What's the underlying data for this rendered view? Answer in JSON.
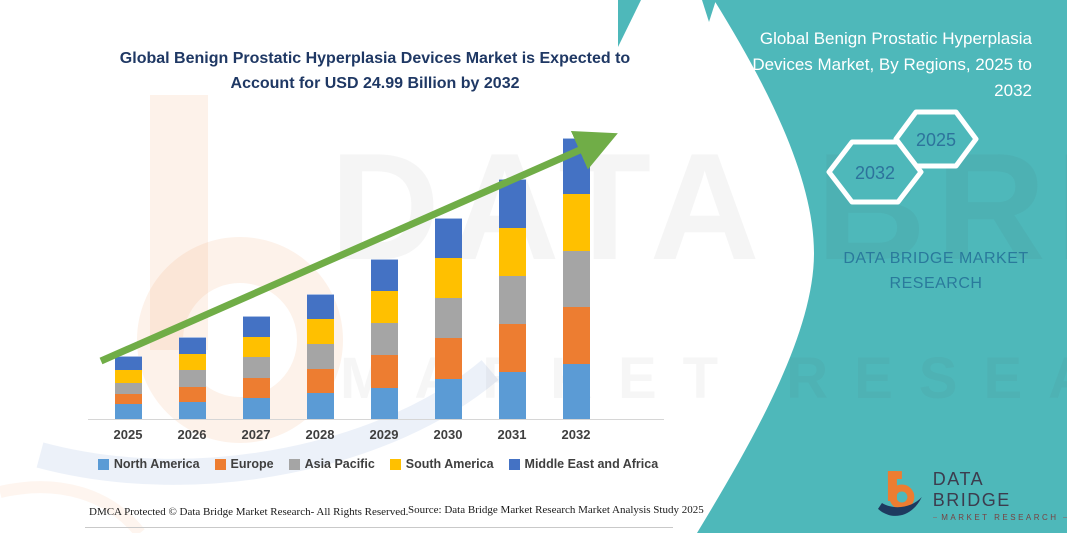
{
  "left_panel": {
    "footer_dmca": "DMCA Protected © Data Bridge Market Research-  All Rights Reserved.",
    "footer_source": "Source: Data Bridge Market Research  Market Analysis Study 2025"
  },
  "right_panel": {
    "title": "Global Benign Prostatic Hyperplasia Devices Market, By Regions, 2025 to 2032",
    "hexagons": [
      {
        "label": "2032"
      },
      {
        "label": "2025"
      }
    ],
    "brand_text": "DATA BRIDGE MARKET RESEARCH",
    "logo": {
      "name": "DATA BRIDGE",
      "subtitle": "MARKET RESEARCH"
    }
  },
  "watermark": {
    "line1": "DATA BRIDGE",
    "line2": "MARKET RESEARCH"
  },
  "colors": {
    "teal_background": "#4eb8ba",
    "title_navy": "#1f3864",
    "arrow_green": "#70ad47",
    "hexagon_text_blue": "#2d739c"
  },
  "chart_data": {
    "type": "bar",
    "stacked": true,
    "title": "Global Benign Prostatic Hyperplasia Devices Market is Expected to Account for USD 24.99 Billion by 2032",
    "unit": "USD Billion",
    "categories": [
      "2025",
      "2026",
      "2027",
      "2028",
      "2029",
      "2030",
      "2031",
      "2032"
    ],
    "series": [
      {
        "name": "North America",
        "color": "#5b9bd5",
        "values": [
          1.3,
          1.5,
          1.9,
          2.3,
          2.8,
          3.6,
          4.2,
          4.9
        ]
      },
      {
        "name": "Europe",
        "color": "#ed7d31",
        "values": [
          0.9,
          1.4,
          1.8,
          2.2,
          2.9,
          3.6,
          4.3,
          5.1
        ]
      },
      {
        "name": "Asia Pacific",
        "color": "#a5a5a5",
        "values": [
          1.0,
          1.5,
          1.8,
          2.2,
          2.9,
          3.6,
          4.3,
          5.0
        ]
      },
      {
        "name": "South America",
        "color": "#ffc000",
        "values": [
          1.2,
          1.4,
          1.8,
          2.2,
          2.8,
          3.6,
          4.3,
          5.1
        ]
      },
      {
        "name": "Middle East and Africa",
        "color": "#4472c4",
        "values": [
          1.1,
          1.4,
          1.8,
          2.2,
          2.8,
          3.5,
          4.3,
          4.9
        ]
      }
    ],
    "totals_estimated": [
      5.5,
      7.2,
      9.1,
      11.1,
      14.2,
      17.9,
      21.4,
      24.99
    ],
    "final_value_label": "USD 24.99 Billion by 2032",
    "xlabel": "",
    "ylabel": "",
    "ylim": [
      0,
      26
    ],
    "y_axis_shown": false,
    "grid": false,
    "legend_position": "bottom",
    "annotation": "green upward trend arrow across bars"
  }
}
